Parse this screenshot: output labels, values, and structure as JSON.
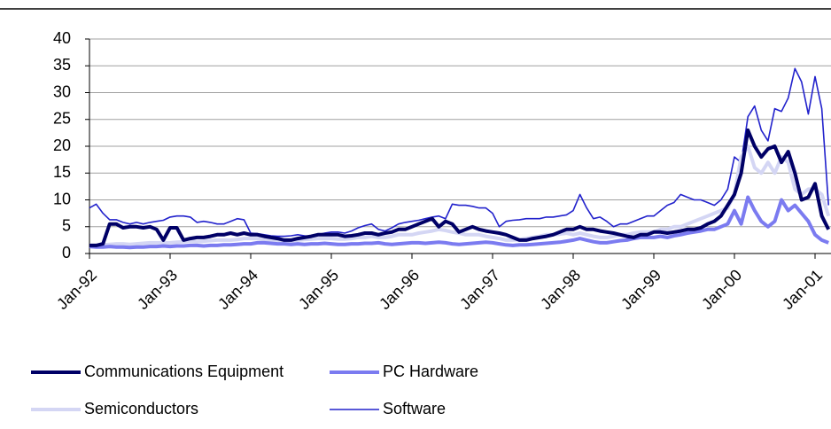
{
  "chart_data": {
    "type": "line",
    "categories": [
      "Jan-92",
      null,
      null,
      null,
      null,
      null,
      null,
      null,
      null,
      null,
      null,
      null,
      "Jan-93",
      null,
      null,
      null,
      null,
      null,
      null,
      null,
      null,
      null,
      null,
      null,
      "Jan-94",
      null,
      null,
      null,
      null,
      null,
      null,
      null,
      null,
      null,
      null,
      null,
      "Jan-95",
      null,
      null,
      null,
      null,
      null,
      null,
      null,
      null,
      null,
      null,
      null,
      "Jan-96",
      null,
      null,
      null,
      null,
      null,
      null,
      null,
      null,
      null,
      null,
      null,
      "Jan-97",
      null,
      null,
      null,
      null,
      null,
      null,
      null,
      null,
      null,
      null,
      null,
      "Jan-98",
      null,
      null,
      null,
      null,
      null,
      null,
      null,
      null,
      null,
      null,
      null,
      "Jan-99",
      null,
      null,
      null,
      null,
      null,
      null,
      null,
      null,
      null,
      null,
      null,
      "Jan-00",
      null,
      null,
      null,
      null,
      null,
      null,
      null,
      null,
      null,
      null,
      null,
      "Jan-01",
      null,
      null
    ],
    "series": [
      {
        "name": "Communications Equipment",
        "color": "#000066",
        "values": [
          1.5,
          1.5,
          1.8,
          5.5,
          5.5,
          4.8,
          5,
          5,
          4.8,
          5,
          4.5,
          2.5,
          4.8,
          4.8,
          2.5,
          2.8,
          3,
          3,
          3.2,
          3.5,
          3.5,
          3.8,
          3.5,
          3.8,
          3.5,
          3.5,
          3.2,
          3,
          2.8,
          2.5,
          2.5,
          2.8,
          3,
          3.2,
          3.5,
          3.5,
          3.5,
          3.5,
          3.2,
          3.3,
          3.5,
          3.8,
          3.8,
          3.5,
          3.8,
          4,
          4.5,
          4.5,
          5,
          5.5,
          6,
          6.5,
          5,
          6,
          5.5,
          4,
          4.5,
          5,
          4.5,
          4.2,
          4,
          3.8,
          3.5,
          3,
          2.5,
          2.5,
          2.8,
          3,
          3.2,
          3.5,
          4,
          4.5,
          4.5,
          5,
          4.5,
          4.5,
          4.2,
          4,
          3.8,
          3.5,
          3.2,
          3,
          3.5,
          3.5,
          4,
          4,
          3.8,
          4,
          4.2,
          4.5,
          4.5,
          4.8,
          5.5,
          6,
          7,
          9,
          11,
          15,
          23,
          20,
          18,
          19.5,
          20,
          17,
          19,
          15,
          10,
          10.5,
          13,
          7,
          4.5
        ]
      },
      {
        "name": "PC Hardware",
        "color": "#7b7bf0",
        "values": [
          1.3,
          1.2,
          1.2,
          1.3,
          1.2,
          1.2,
          1.1,
          1.2,
          1.2,
          1.3,
          1.3,
          1.4,
          1.3,
          1.4,
          1.4,
          1.5,
          1.5,
          1.4,
          1.5,
          1.5,
          1.6,
          1.6,
          1.7,
          1.8,
          1.8,
          2,
          2,
          1.9,
          1.8,
          1.8,
          1.7,
          1.8,
          1.7,
          1.8,
          1.8,
          1.9,
          1.8,
          1.7,
          1.7,
          1.8,
          1.8,
          1.9,
          1.9,
          2,
          1.8,
          1.7,
          1.8,
          1.9,
          2,
          2,
          1.9,
          2,
          2.1,
          2,
          1.8,
          1.7,
          1.8,
          1.9,
          2,
          2.1,
          2,
          1.8,
          1.6,
          1.5,
          1.6,
          1.6,
          1.7,
          1.8,
          1.9,
          2,
          2.1,
          2.3,
          2.5,
          2.8,
          2.5,
          2.2,
          2,
          2,
          2.2,
          2.4,
          2.5,
          2.8,
          3,
          3,
          3,
          3.2,
          3,
          3.3,
          3.5,
          3.8,
          4,
          4.2,
          4.5,
          4.5,
          5,
          5.5,
          8,
          5.5,
          10.5,
          8,
          6,
          5,
          6,
          10,
          8,
          9,
          7.5,
          6,
          3.5,
          2.5,
          2
        ]
      },
      {
        "name": "Semiconductors",
        "color": "#d4d6f4",
        "values": [
          1.5,
          1.5,
          1.6,
          1.7,
          1.8,
          1.8,
          1.7,
          1.8,
          1.9,
          2,
          2,
          2,
          2,
          2.1,
          2.2,
          2.3,
          2.2,
          2.3,
          2.4,
          2.5,
          2.5,
          2.5,
          2.6,
          2.8,
          2.8,
          2.8,
          2.6,
          2.5,
          2.5,
          2.4,
          2.4,
          2.5,
          2.6,
          2.7,
          2.8,
          2.8,
          2.8,
          2.7,
          2.7,
          2.8,
          3,
          3,
          3.2,
          3,
          3,
          3.2,
          3.5,
          3.5,
          3.5,
          3.8,
          4,
          4.2,
          4.5,
          4.3,
          4,
          3.8,
          3.5,
          3.5,
          3.5,
          3.2,
          3,
          2.8,
          2.5,
          2.5,
          2.6,
          2.8,
          3,
          3.2,
          3.5,
          3.5,
          3.6,
          3.8,
          3.5,
          3.8,
          3.5,
          3.2,
          3,
          3,
          3.2,
          3.5,
          3.5,
          3.8,
          4,
          4,
          4,
          4.5,
          4.5,
          5,
          5,
          5.5,
          6,
          6.5,
          7,
          7.5,
          8,
          8.5,
          11,
          18,
          20,
          16,
          15,
          17,
          15,
          18,
          17,
          12,
          11,
          12,
          12,
          11,
          7
        ]
      },
      {
        "name": "Software",
        "color": "#2222cc",
        "values": [
          8.5,
          9.2,
          7.5,
          6.3,
          6.3,
          5.8,
          5.5,
          5.8,
          5.5,
          5.8,
          6,
          6.2,
          6.8,
          7,
          7,
          6.8,
          5.8,
          6,
          5.8,
          5.5,
          5.5,
          6,
          6.5,
          6.3,
          3.8,
          3.7,
          3.5,
          3.3,
          3.2,
          3.2,
          3.3,
          3.5,
          3.3,
          3.2,
          3.5,
          3.8,
          4,
          4,
          3.8,
          4.2,
          4.8,
          5.2,
          5.5,
          4.5,
          4.2,
          4.8,
          5.5,
          5.8,
          6,
          6.2,
          6.5,
          6.8,
          7,
          6.5,
          9.2,
          9,
          9,
          8.8,
          8.5,
          8.5,
          7.5,
          5,
          6,
          6.2,
          6.3,
          6.5,
          6.5,
          6.5,
          6.8,
          6.8,
          7,
          7.2,
          8,
          11,
          8.5,
          6.5,
          6.8,
          6,
          5,
          5.5,
          5.5,
          6,
          6.5,
          7,
          7,
          8,
          9,
          9.5,
          11,
          10.5,
          10,
          10,
          9.5,
          9,
          10,
          12,
          18,
          17,
          25.5,
          27.5,
          23,
          21,
          27,
          26.5,
          29,
          34.5,
          32,
          26,
          33,
          27,
          9
        ]
      }
    ],
    "ylim": [
      0,
      40
    ],
    "yticks": [
      0,
      5,
      10,
      15,
      20,
      25,
      30,
      35,
      40
    ],
    "grid": true
  }
}
